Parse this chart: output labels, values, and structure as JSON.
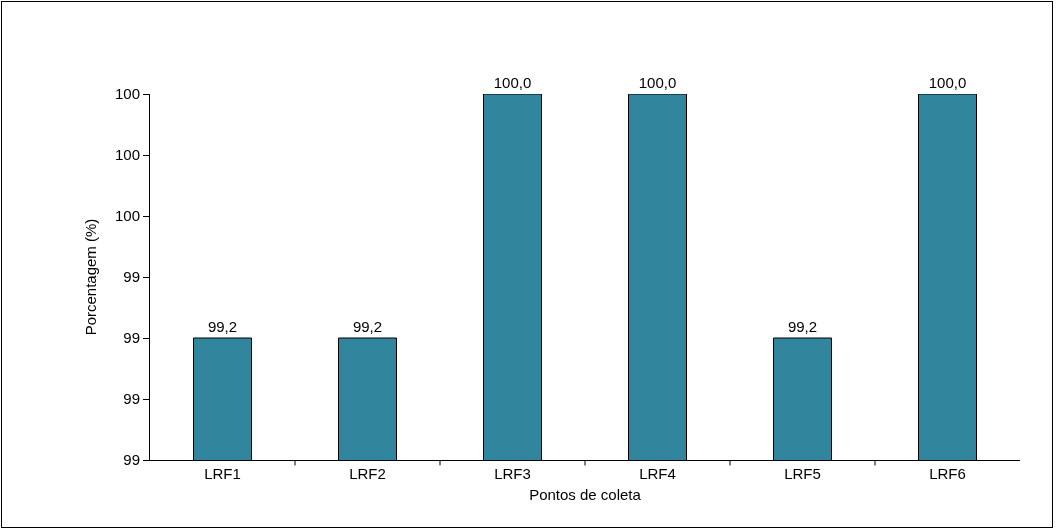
{
  "chart_data": {
    "type": "bar",
    "xlabel": "Pontos de coleta",
    "ylabel": "Porcentagem (%)",
    "categories": [
      "LRF1",
      "LRF2",
      "LRF3",
      "LRF4",
      "LRF5",
      "LRF6"
    ],
    "values": [
      99.2,
      99.2,
      100.0,
      100.0,
      99.2,
      100.0
    ],
    "value_labels": [
      "99,2",
      "99,2",
      "100,0",
      "100,0",
      "99,2",
      "100,0"
    ],
    "color": "#31859c",
    "ylim": [
      98.8,
      100.0
    ],
    "yticks": [
      {
        "value": 98.8,
        "label": "99"
      },
      {
        "value": 99.0,
        "label": "99"
      },
      {
        "value": 99.2,
        "label": "99"
      },
      {
        "value": 99.4,
        "label": "99"
      },
      {
        "value": 99.6,
        "label": "100"
      },
      {
        "value": 99.8,
        "label": "100"
      },
      {
        "value": 100.0,
        "label": "100"
      }
    ],
    "grid": false
  }
}
